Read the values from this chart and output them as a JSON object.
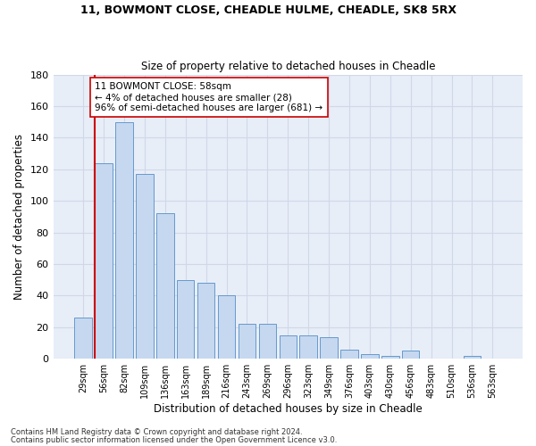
{
  "title1": "11, BOWMONT CLOSE, CHEADLE HULME, CHEADLE, SK8 5RX",
  "title2": "Size of property relative to detached houses in Cheadle",
  "xlabel": "Distribution of detached houses by size in Cheadle",
  "ylabel": "Number of detached properties",
  "categories": [
    "29sqm",
    "56sqm",
    "82sqm",
    "109sqm",
    "136sqm",
    "163sqm",
    "189sqm",
    "216sqm",
    "243sqm",
    "269sqm",
    "296sqm",
    "323sqm",
    "349sqm",
    "376sqm",
    "403sqm",
    "430sqm",
    "456sqm",
    "483sqm",
    "510sqm",
    "536sqm",
    "563sqm"
  ],
  "values": [
    26,
    124,
    150,
    117,
    92,
    50,
    48,
    40,
    22,
    22,
    15,
    15,
    14,
    6,
    3,
    2,
    5,
    0,
    0,
    2,
    0
  ],
  "bar_color": "#c5d8f0",
  "bar_edge_color": "#6699cc",
  "grid_color": "#d0d8e8",
  "background_color": "#e8eef8",
  "annotation_line1": "11 BOWMONT CLOSE: 58sqm",
  "annotation_line2": "← 4% of detached houses are smaller (28)",
  "annotation_line3": "96% of semi-detached houses are larger (681) →",
  "vline_color": "#cc0000",
  "annotation_box_color": "#ffffff",
  "annotation_box_edge": "#cc0000",
  "ylim": [
    0,
    180
  ],
  "yticks": [
    0,
    20,
    40,
    60,
    80,
    100,
    120,
    140,
    160,
    180
  ],
  "footer1": "Contains HM Land Registry data © Crown copyright and database right 2024.",
  "footer2": "Contains public sector information licensed under the Open Government Licence v3.0."
}
